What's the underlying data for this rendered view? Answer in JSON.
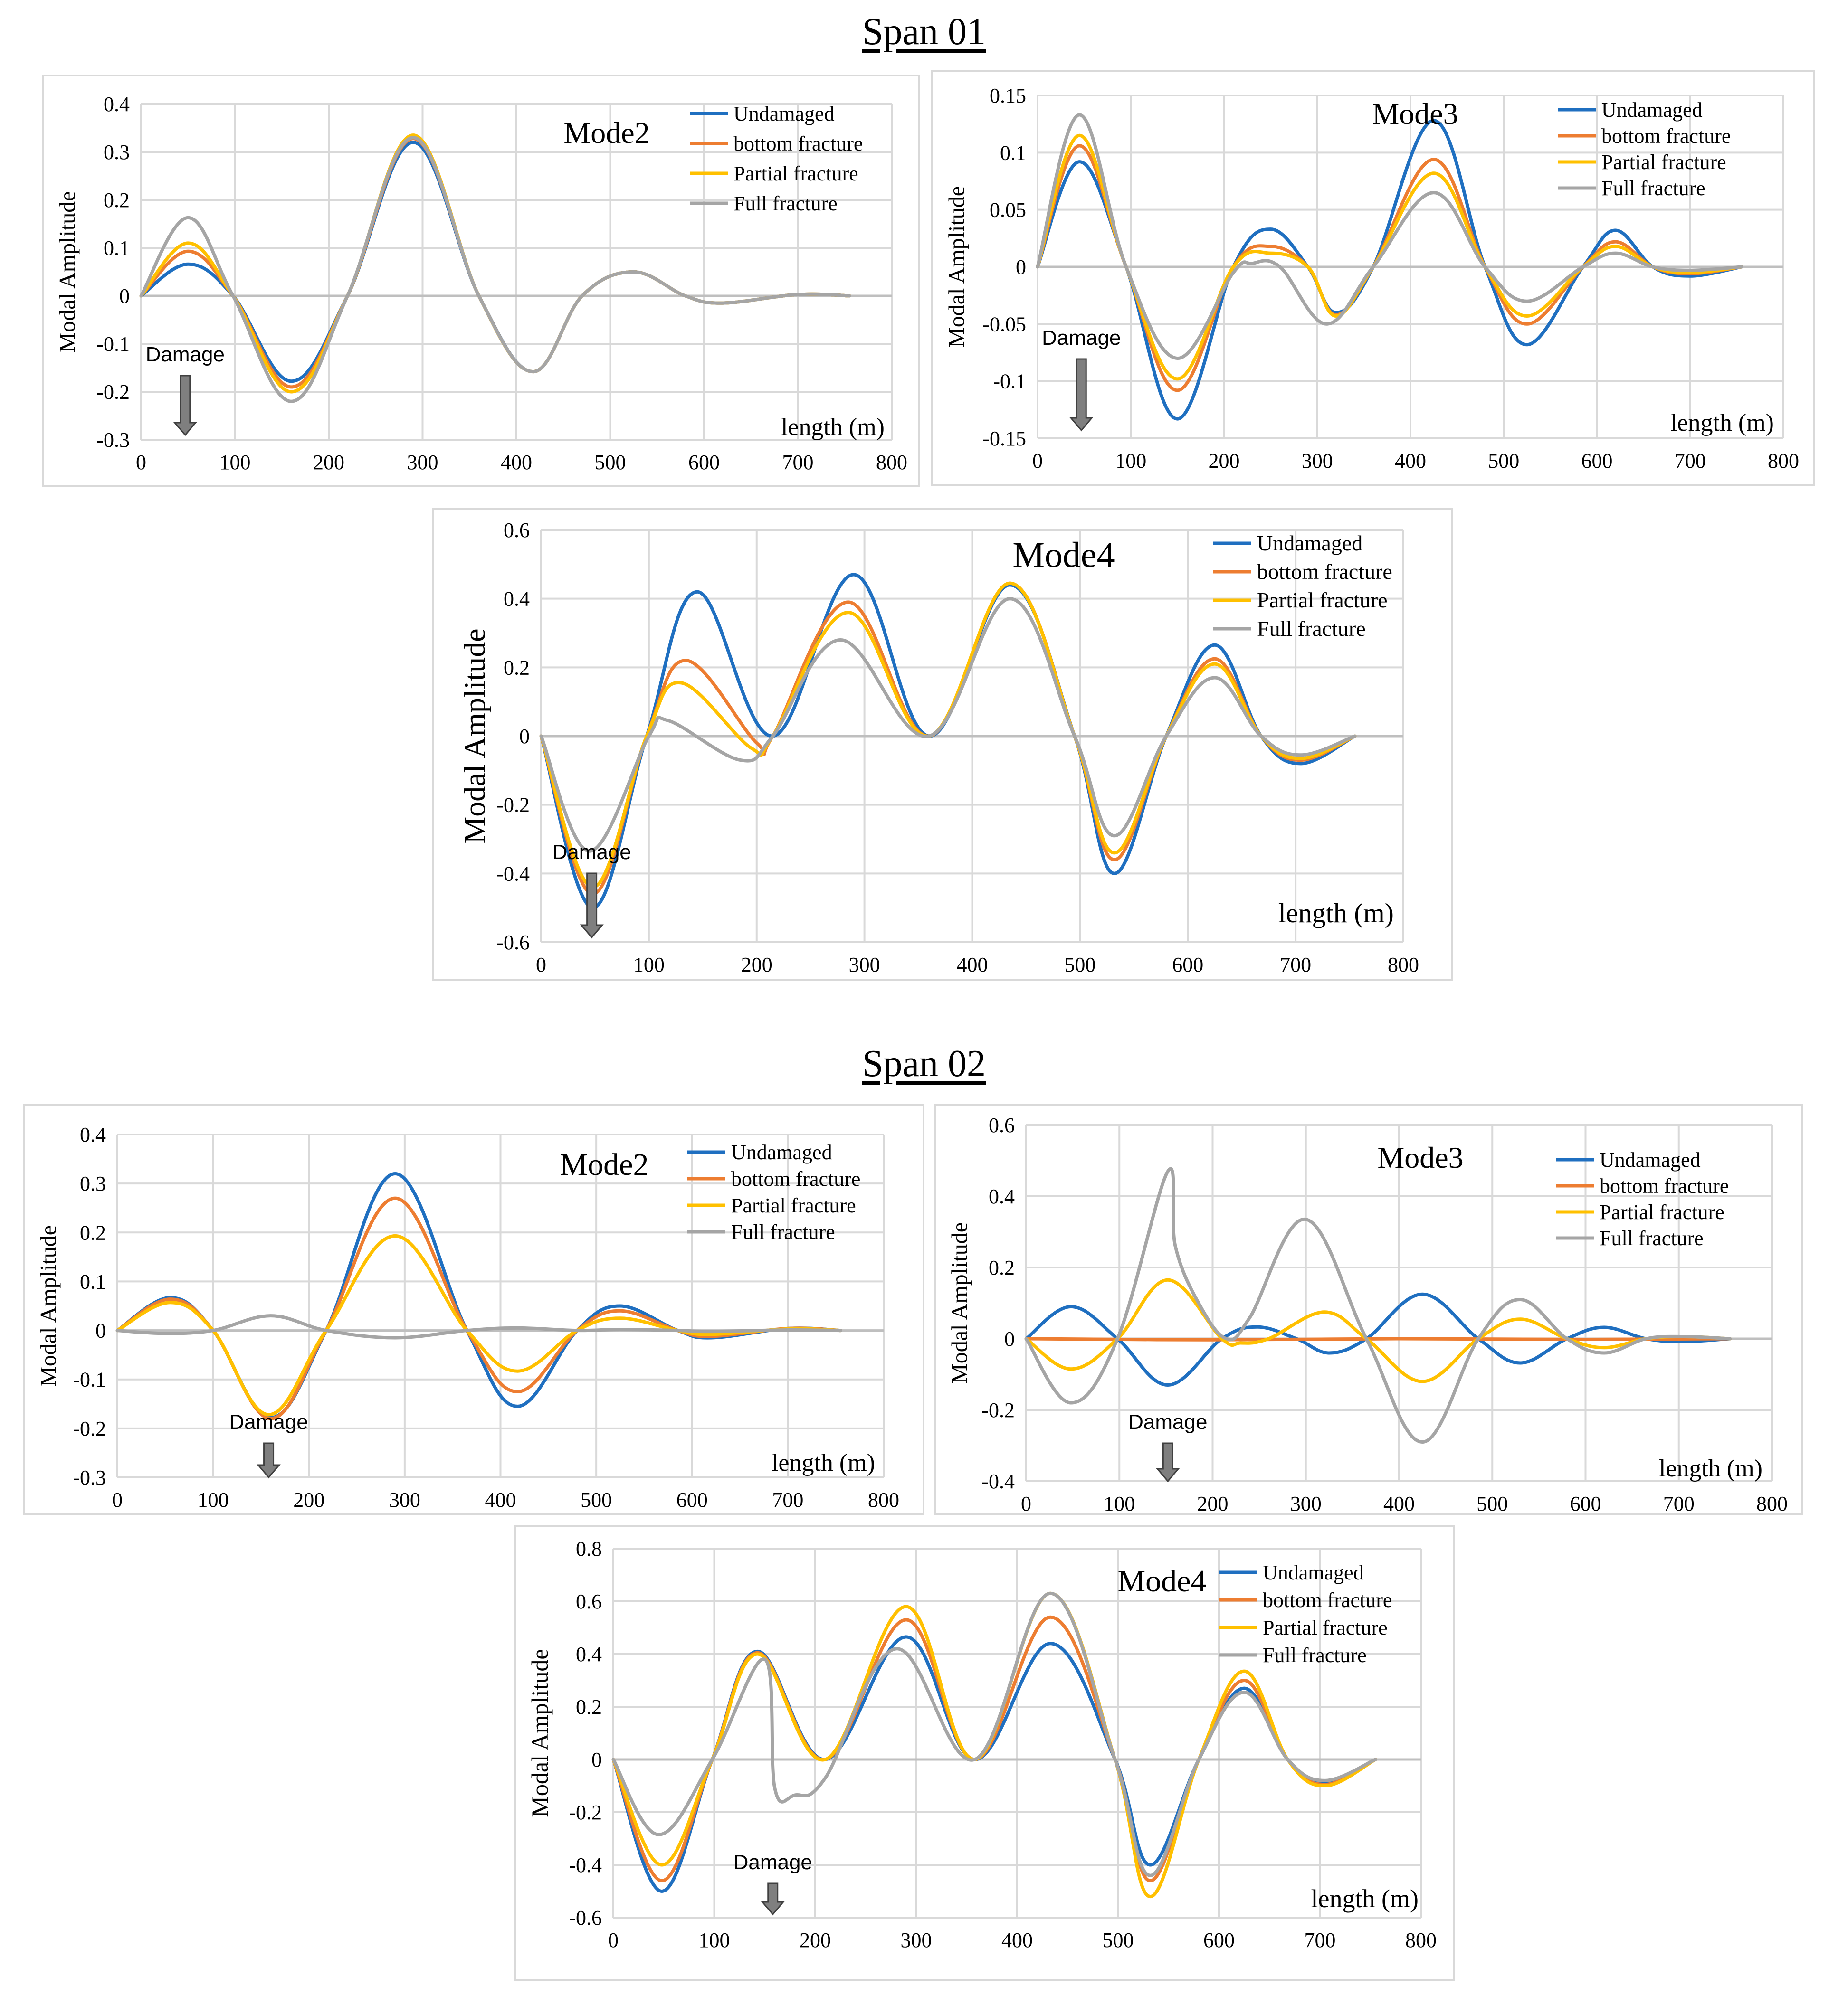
{
  "sections": [
    {
      "title": "Span 01"
    },
    {
      "title": "Span 02"
    }
  ],
  "colors": {
    "Undamaged": "#1f6fc0",
    "bottom fracture": "#ed7d31",
    "Partial fracture": "#ffc000",
    "Full fracture": "#a5a5a5"
  },
  "chart_data": [
    {
      "id": "s1m2",
      "section": "Span 01",
      "type": "line",
      "title": "Mode2",
      "xlabel": "length (m)",
      "ylabel": "Modal Amplitude",
      "xlim": [
        0,
        800
      ],
      "ylim": [
        -0.3,
        0.4
      ],
      "xticks": [
        "0",
        "100",
        "200",
        "300",
        "400",
        "500",
        "600",
        "700",
        "800"
      ],
      "yticks": [
        "0.4",
        "0.3",
        "0.2",
        "0.1",
        "0",
        "-0.1",
        "-0.2",
        "-0.3"
      ],
      "annotation": {
        "text": "Damage",
        "x": 47
      },
      "series": [
        {
          "name": "Undamaged",
          "x": [
            0,
            50,
            98,
            160,
            220,
            290,
            360,
            418,
            470,
            525,
            580,
            620,
            700,
            755
          ],
          "y": [
            0,
            0.066,
            0,
            -0.178,
            0,
            0.32,
            0,
            -0.158,
            0,
            0.05,
            0,
            -0.015,
            0.003,
            0
          ]
        },
        {
          "name": "bottom fracture",
          "x": [
            0,
            50,
            98,
            160,
            220,
            290,
            360,
            418,
            470,
            525,
            580,
            620,
            700,
            755
          ],
          "y": [
            0,
            0.093,
            0,
            -0.19,
            0,
            0.328,
            0,
            -0.158,
            0,
            0.05,
            0,
            -0.015,
            0.003,
            0
          ]
        },
        {
          "name": "Partial fracture",
          "x": [
            0,
            50,
            98,
            160,
            220,
            290,
            360,
            418,
            470,
            525,
            580,
            620,
            700,
            755
          ],
          "y": [
            0,
            0.11,
            0,
            -0.2,
            0,
            0.335,
            0,
            -0.158,
            0,
            0.05,
            0,
            -0.015,
            0.003,
            0
          ]
        },
        {
          "name": "Full fracture",
          "x": [
            0,
            50,
            98,
            160,
            220,
            290,
            360,
            418,
            470,
            525,
            580,
            620,
            700,
            755
          ],
          "y": [
            0,
            0.163,
            0,
            -0.22,
            0,
            0.33,
            0,
            -0.158,
            0,
            0.05,
            0,
            -0.015,
            0.003,
            0
          ]
        }
      ]
    },
    {
      "id": "s1m3",
      "section": "Span 01",
      "type": "line",
      "title": "Mode3",
      "xlabel": "length (m)",
      "ylabel": "Modal Amplitude",
      "xlim": [
        0,
        800
      ],
      "ylim": [
        -0.15,
        0.15
      ],
      "xticks": [
        "0",
        "100",
        "200",
        "300",
        "400",
        "500",
        "600",
        "700",
        "800"
      ],
      "yticks": [
        "0.15",
        "0.1",
        "0.05",
        "0",
        "-0.05",
        "-0.1",
        "-0.15"
      ],
      "annotation": {
        "text": "Damage",
        "x": 47
      },
      "series": [
        {
          "name": "Undamaged",
          "x": [
            0,
            45,
            95,
            150,
            210,
            250,
            290,
            320,
            360,
            425,
            480,
            525,
            585,
            620,
            660,
            700,
            755
          ],
          "y": [
            0,
            0.092,
            0,
            -0.133,
            0,
            0.033,
            0,
            -0.04,
            0,
            0.128,
            0,
            -0.068,
            0,
            0.032,
            0,
            -0.008,
            0
          ]
        },
        {
          "name": "bottom fracture",
          "x": [
            0,
            45,
            95,
            150,
            210,
            250,
            290,
            320,
            360,
            425,
            480,
            525,
            585,
            620,
            660,
            700,
            755
          ],
          "y": [
            0,
            0.106,
            0,
            -0.108,
            0,
            0.018,
            0,
            -0.042,
            0,
            0.094,
            0,
            -0.05,
            0,
            0.022,
            0,
            -0.006,
            0
          ]
        },
        {
          "name": "Partial fracture",
          "x": [
            0,
            45,
            95,
            150,
            210,
            250,
            290,
            320,
            360,
            425,
            480,
            525,
            585,
            620,
            660,
            700,
            755
          ],
          "y": [
            0,
            0.115,
            0,
            -0.098,
            0,
            0.012,
            0,
            -0.043,
            0,
            0.082,
            0,
            -0.043,
            0,
            0.018,
            0,
            -0.005,
            0
          ]
        },
        {
          "name": "Full fracture",
          "x": [
            0,
            45,
            95,
            150,
            210,
            230,
            260,
            310,
            360,
            425,
            480,
            525,
            585,
            620,
            660,
            700,
            755
          ],
          "y": [
            0,
            0.133,
            0,
            -0.08,
            -0.005,
            0.003,
            0,
            -0.05,
            0,
            0.065,
            0,
            -0.03,
            0,
            0.012,
            0,
            -0.003,
            0
          ]
        }
      ]
    },
    {
      "id": "s1m4",
      "section": "Span 01",
      "type": "line",
      "title": "Mode4",
      "xlabel": "length (m)",
      "ylabel": "Modal Amplitude",
      "xlim": [
        0,
        800
      ],
      "ylim": [
        -0.6,
        0.6
      ],
      "xticks": [
        "0",
        "100",
        "200",
        "300",
        "400",
        "500",
        "600",
        "700",
        "800"
      ],
      "yticks": [
        "0.6",
        "0.4",
        "0.2",
        "0",
        "-0.2",
        "-0.4",
        "-0.6"
      ],
      "annotation": {
        "text": "Damage",
        "x": 47
      },
      "series": [
        {
          "name": "Undamaged",
          "x": [
            0,
            48,
            98,
            145,
            215,
            290,
            360,
            435,
            495,
            532,
            580,
            625,
            668,
            705,
            755
          ],
          "y": [
            0,
            -0.5,
            0,
            0.42,
            0,
            0.47,
            0,
            0.44,
            0,
            -0.4,
            0,
            0.265,
            0,
            -0.08,
            0
          ]
        },
        {
          "name": "bottom fracture",
          "x": [
            0,
            48,
            98,
            135,
            200,
            215,
            285,
            360,
            435,
            495,
            532,
            580,
            625,
            668,
            705,
            755
          ],
          "y": [
            0,
            -0.46,
            0,
            0.22,
            -0.02,
            0,
            0.39,
            0,
            0.445,
            0,
            -0.36,
            0,
            0.225,
            0,
            -0.07,
            0
          ]
        },
        {
          "name": "Partial fracture",
          "x": [
            0,
            48,
            98,
            130,
            195,
            215,
            285,
            360,
            435,
            495,
            532,
            580,
            625,
            668,
            705,
            755
          ],
          "y": [
            0,
            -0.44,
            0,
            0.155,
            -0.035,
            0,
            0.36,
            0,
            0.445,
            0,
            -0.34,
            0,
            0.21,
            0,
            -0.065,
            0
          ]
        },
        {
          "name": "Full fracture",
          "x": [
            0,
            45,
            100,
            118,
            185,
            215,
            278,
            360,
            435,
            495,
            532,
            580,
            625,
            668,
            705,
            755
          ],
          "y": [
            0,
            -0.335,
            0,
            0.045,
            -0.07,
            0,
            0.28,
            0,
            0.4,
            0,
            -0.29,
            0,
            0.17,
            0,
            -0.055,
            0
          ]
        }
      ]
    },
    {
      "id": "s2m2",
      "section": "Span 02",
      "type": "line",
      "title": "Mode2",
      "xlabel": "length (m)",
      "ylabel": "Modal Amplitude",
      "xlim": [
        0,
        800
      ],
      "ylim": [
        -0.3,
        0.4
      ],
      "xticks": [
        "0",
        "100",
        "200",
        "300",
        "400",
        "500",
        "600",
        "700",
        "800"
      ],
      "yticks": [
        "0.4",
        "0.3",
        "0.2",
        "0.1",
        "0",
        "-0.1",
        "-0.2",
        "-0.3"
      ],
      "annotation": {
        "text": "Damage",
        "x": 158
      },
      "series": [
        {
          "name": "Undamaged",
          "x": [
            0,
            55,
            100,
            160,
            218,
            290,
            365,
            418,
            480,
            525,
            585,
            620,
            700,
            755
          ],
          "y": [
            0,
            0.067,
            0,
            -0.178,
            0,
            0.32,
            0,
            -0.155,
            0,
            0.05,
            0,
            -0.015,
            0.004,
            0
          ]
        },
        {
          "name": "bottom fracture",
          "x": [
            0,
            55,
            100,
            160,
            218,
            290,
            365,
            418,
            480,
            525,
            585,
            620,
            700,
            755
          ],
          "y": [
            0,
            0.064,
            0,
            -0.18,
            0,
            0.27,
            0,
            -0.125,
            0,
            0.04,
            0,
            -0.012,
            0.004,
            0
          ]
        },
        {
          "name": "Partial fracture",
          "x": [
            0,
            55,
            100,
            158,
            218,
            290,
            365,
            418,
            480,
            525,
            585,
            620,
            700,
            755
          ],
          "y": [
            0,
            0.057,
            0,
            -0.172,
            0,
            0.193,
            0,
            -0.083,
            0,
            0.025,
            0,
            -0.008,
            0.003,
            0
          ]
        },
        {
          "name": "Full fracture",
          "x": [
            0,
            50,
            100,
            160,
            218,
            290,
            365,
            418,
            480,
            525,
            585,
            620,
            700,
            755
          ],
          "y": [
            0,
            -0.006,
            0,
            0.03,
            0,
            -0.015,
            0,
            0.005,
            0,
            0.002,
            0,
            -0.002,
            0.001,
            0
          ]
        }
      ]
    },
    {
      "id": "s2m3",
      "section": "Span 02",
      "type": "line",
      "title": "Mode3",
      "xlabel": "length (m)",
      "ylabel": "Modal Amplitude",
      "xlim": [
        0,
        800
      ],
      "ylim": [
        -0.4,
        0.6
      ],
      "xticks": [
        "0",
        "100",
        "200",
        "300",
        "400",
        "500",
        "600",
        "700",
        "800"
      ],
      "yticks": [
        "0.6",
        "0.4",
        "0.2",
        "0",
        "-0.2",
        "-0.4"
      ],
      "annotation": {
        "text": "Damage",
        "x": 152
      },
      "series": [
        {
          "name": "Undamaged",
          "x": [
            0,
            48,
            98,
            152,
            210,
            248,
            290,
            325,
            365,
            425,
            485,
            530,
            580,
            620,
            665,
            705,
            755
          ],
          "y": [
            0,
            0.09,
            0,
            -0.13,
            0,
            0.033,
            0,
            -0.04,
            0,
            0.125,
            0,
            -0.068,
            0,
            0.032,
            0,
            -0.008,
            0
          ]
        },
        {
          "name": "bottom fracture",
          "x": [
            0,
            200,
            400,
            600,
            755
          ],
          "y": [
            0,
            -0.003,
            0,
            -0.002,
            0
          ]
        },
        {
          "name": "Partial fracture",
          "x": [
            0,
            48,
            98,
            152,
            210,
            230,
            260,
            320,
            365,
            425,
            485,
            530,
            580,
            620,
            665,
            705,
            755
          ],
          "y": [
            0,
            -0.085,
            0,
            0.165,
            0,
            -0.012,
            0,
            0.075,
            0,
            -0.12,
            0,
            0.055,
            0,
            -0.025,
            0,
            0.006,
            0
          ]
        },
        {
          "name": "Full fracture",
          "x": [
            0,
            48,
            98,
            152,
            160,
            185,
            215,
            240,
            300,
            365,
            425,
            485,
            530,
            580,
            620,
            665,
            705,
            755
          ],
          "y": [
            0,
            -0.18,
            0,
            0.47,
            0.26,
            0.1,
            0,
            0.06,
            0.335,
            0,
            -0.29,
            0,
            0.11,
            0,
            -0.04,
            0,
            0.006,
            0
          ]
        }
      ]
    },
    {
      "id": "s2m4",
      "section": "Span 02",
      "type": "line",
      "title": "Mode4",
      "xlabel": "length (m)",
      "ylabel": "Modal Amplitude",
      "xlim": [
        0,
        800
      ],
      "ylim": [
        -0.6,
        0.8
      ],
      "xticks": [
        "0",
        "100",
        "200",
        "300",
        "400",
        "500",
        "600",
        "700",
        "800"
      ],
      "yticks": [
        "0.8",
        "0.6",
        "0.4",
        "0.2",
        "0",
        "-0.2",
        "-0.4",
        "-0.6"
      ],
      "annotation": {
        "text": "Damage",
        "x": 158
      },
      "series": [
        {
          "name": "Undamaged",
          "x": [
            0,
            48,
            98,
            143,
            210,
            290,
            358,
            433,
            497,
            532,
            580,
            625,
            668,
            705,
            755
          ],
          "y": [
            0,
            -0.5,
            0,
            0.41,
            0,
            0.465,
            0,
            0.44,
            0,
            -0.4,
            0,
            0.27,
            0,
            -0.085,
            0
          ]
        },
        {
          "name": "bottom fracture",
          "x": [
            0,
            48,
            98,
            143,
            210,
            290,
            358,
            433,
            497,
            532,
            580,
            625,
            668,
            705,
            755
          ],
          "y": [
            0,
            -0.46,
            0,
            0.405,
            0,
            0.53,
            0,
            0.54,
            0,
            -0.46,
            0,
            0.3,
            0,
            -0.095,
            0
          ]
        },
        {
          "name": "Partial fracture",
          "x": [
            0,
            48,
            98,
            143,
            210,
            290,
            358,
            433,
            497,
            532,
            580,
            625,
            668,
            705,
            755
          ],
          "y": [
            0,
            -0.4,
            0,
            0.4,
            0,
            0.58,
            0,
            0.63,
            0,
            -0.52,
            0,
            0.335,
            0,
            -0.1,
            0
          ]
        },
        {
          "name": "Full fracture",
          "x": [
            0,
            45,
            98,
            150,
            160,
            180,
            210,
            280,
            358,
            433,
            497,
            532,
            580,
            625,
            668,
            705,
            755
          ],
          "y": [
            0,
            -0.285,
            0,
            0.38,
            -0.11,
            -0.135,
            -0.07,
            0.42,
            0,
            0.63,
            0,
            -0.44,
            0,
            0.255,
            0,
            -0.08,
            0
          ]
        }
      ]
    }
  ]
}
